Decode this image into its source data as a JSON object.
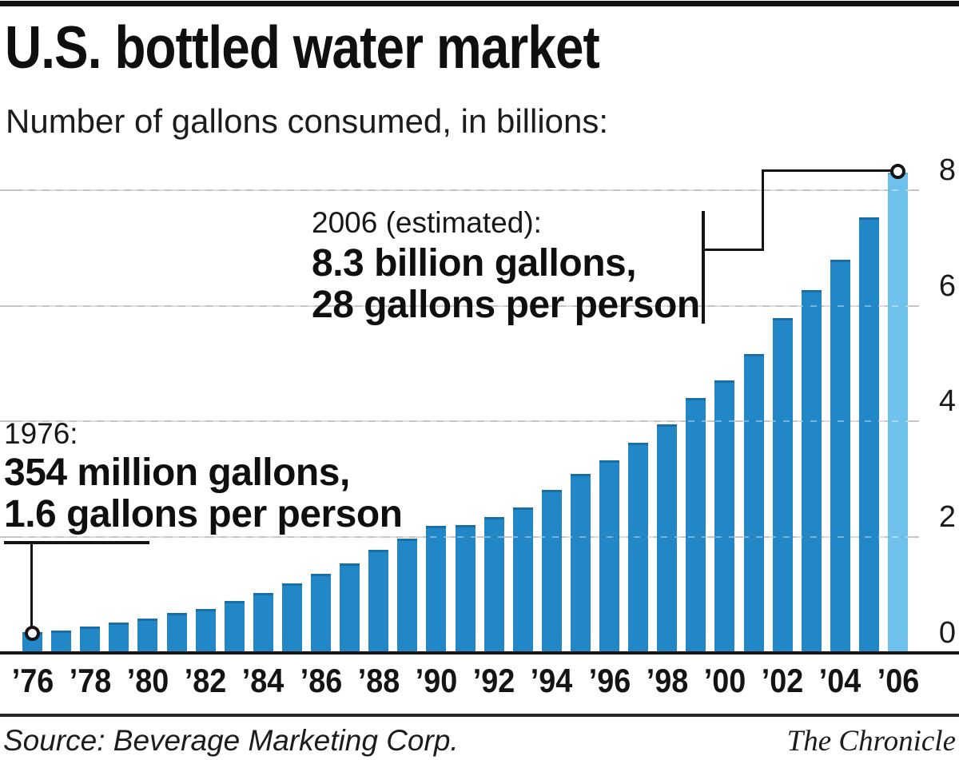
{
  "header": {
    "title": "U.S. bottled water market",
    "subtitle": "Number of gallons consumed, in billions:"
  },
  "annotations": {
    "start": {
      "label": "1976:",
      "line1": "354 million gallons,",
      "line2": "1.6 gallons per person"
    },
    "end": {
      "label": "2006 (estimated):",
      "line1": "8.3 billion gallons,",
      "line2": "28 gallons per person"
    }
  },
  "footer": {
    "source": "Source: Beverage Marketing Corp.",
    "credit": "The Chronicle"
  },
  "chart_data": {
    "type": "bar",
    "title": "U.S. bottled water market",
    "ylabel": "Number of gallons consumed, in billions",
    "x": [
      1976,
      1977,
      1978,
      1979,
      1980,
      1981,
      1982,
      1983,
      1984,
      1985,
      1986,
      1987,
      1988,
      1989,
      1990,
      1991,
      1992,
      1993,
      1994,
      1995,
      1996,
      1997,
      1998,
      1999,
      2000,
      2001,
      2002,
      2003,
      2004,
      2005,
      2006
    ],
    "values": [
      0.354,
      0.38,
      0.45,
      0.52,
      0.6,
      0.69,
      0.76,
      0.9,
      1.03,
      1.2,
      1.37,
      1.55,
      1.78,
      1.97,
      2.19,
      2.21,
      2.35,
      2.52,
      2.82,
      3.09,
      3.33,
      3.63,
      3.95,
      4.4,
      4.71,
      5.17,
      5.79,
      6.27,
      6.8,
      7.53,
      8.3
    ],
    "x_tick_labels": [
      "’76",
      "’78",
      "’80",
      "’82",
      "’84",
      "’86",
      "’88",
      "’90",
      "’92",
      "’94",
      "’96",
      "’98",
      "’00",
      "’02",
      "’04",
      "’06"
    ],
    "y_ticks": [
      0,
      2,
      4,
      6,
      8
    ],
    "ylim": [
      0,
      8.3
    ],
    "grid": true,
    "tick_side": "right",
    "bar_color": "#2187c6",
    "highlight_color": "#6ec1ea",
    "highlight_year": 2006,
    "annotated_points": [
      {
        "year": 1976,
        "value_label": "354 million gallons",
        "per_person": "1.6 gallons per person"
      },
      {
        "year": 2006,
        "value_label": "8.3 billion gallons",
        "per_person": "28 gallons per person",
        "estimated": true
      }
    ]
  }
}
